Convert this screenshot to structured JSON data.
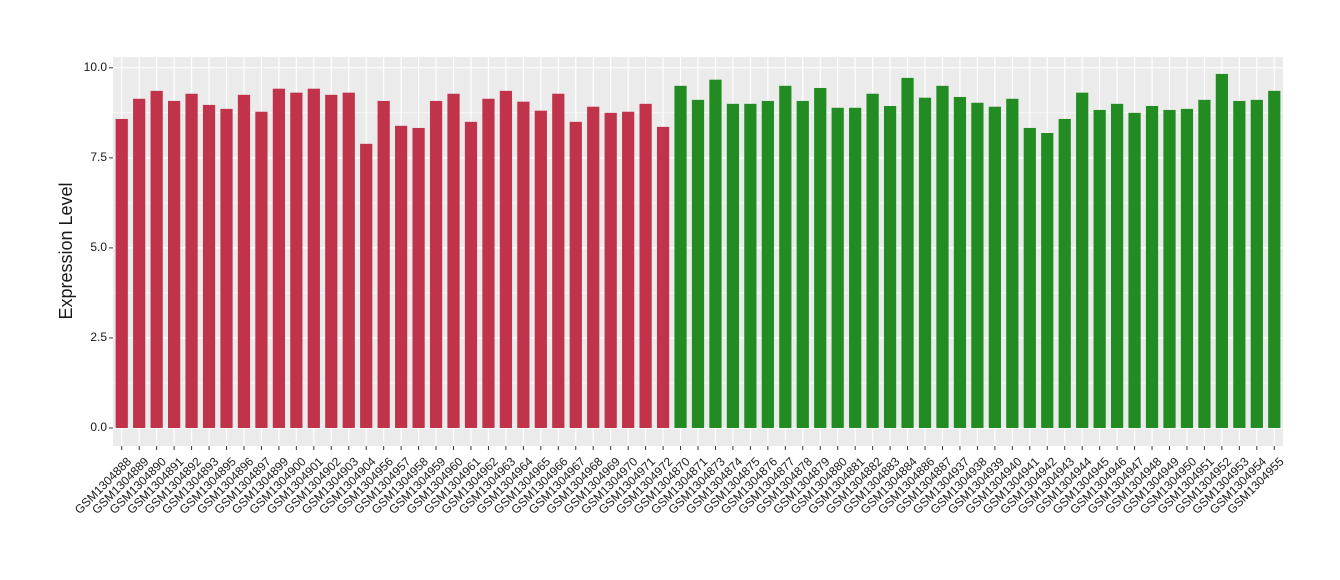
{
  "chart_data": {
    "type": "bar",
    "y_label": "Expression Level",
    "categories": [
      "GSM1304888",
      "GSM1304889",
      "GSM1304890",
      "GSM1304891",
      "GSM1304892",
      "GSM1304893",
      "GSM1304895",
      "GSM1304896",
      "GSM1304897",
      "GSM1304899",
      "GSM1304900",
      "GSM1304901",
      "GSM1304902",
      "GSM1304903",
      "GSM1304904",
      "GSM1304956",
      "GSM1304957",
      "GSM1304958",
      "GSM1304959",
      "GSM1304960",
      "GSM1304961",
      "GSM1304962",
      "GSM1304963",
      "GSM1304964",
      "GSM1304965",
      "GSM1304966",
      "GSM1304967",
      "GSM1304968",
      "GSM1304969",
      "GSM1304970",
      "GSM1304971",
      "GSM1304972",
      "GSM1304870",
      "GSM1304871",
      "GSM1304873",
      "GSM1304874",
      "GSM1304875",
      "GSM1304876",
      "GSM1304877",
      "GSM1304878",
      "GSM1304879",
      "GSM1304880",
      "GSM1304881",
      "GSM1304882",
      "GSM1304883",
      "GSM1304884",
      "GSM1304886",
      "GSM1304887",
      "GSM1304937",
      "GSM1304938",
      "GSM1304939",
      "GSM1304940",
      "GSM1304941",
      "GSM1304942",
      "GSM1304943",
      "GSM1304944",
      "GSM1304945",
      "GSM1304946",
      "GSM1304947",
      "GSM1304948",
      "GSM1304949",
      "GSM1304950",
      "GSM1304951",
      "GSM1304952",
      "GSM1304953",
      "GSM1304954",
      "GSM1304955"
    ],
    "series": [
      {
        "color": "#c0334a",
        "values": [
          8.58,
          9.14,
          9.36,
          9.08,
          9.28,
          8.97,
          8.86,
          9.25,
          8.78,
          9.42,
          9.31,
          9.42,
          9.25,
          9.31,
          7.89,
          9.08,
          8.39,
          8.33,
          9.08,
          9.28,
          8.5,
          9.14,
          9.36,
          9.06,
          8.81,
          9.28,
          8.5,
          8.92,
          8.75,
          8.78,
          9.0,
          8.36,
          null,
          null,
          null,
          null,
          null,
          null,
          null,
          null,
          null,
          null,
          null,
          null,
          null,
          null,
          null,
          null,
          null,
          null,
          null,
          null,
          null,
          null,
          null,
          null,
          null,
          null,
          null,
          null,
          null,
          null,
          null,
          null,
          null,
          null,
          null
        ]
      },
      {
        "color": "#228b22",
        "values": [
          null,
          null,
          null,
          null,
          null,
          null,
          null,
          null,
          null,
          null,
          null,
          null,
          null,
          null,
          null,
          null,
          null,
          null,
          null,
          null,
          null,
          null,
          null,
          null,
          null,
          null,
          null,
          null,
          null,
          null,
          null,
          null,
          9.5,
          9.11,
          9.67,
          9.0,
          9.0,
          9.08,
          9.5,
          9.08,
          9.44,
          8.89,
          8.89,
          9.28,
          8.94,
          9.72,
          9.17,
          9.5,
          9.19,
          9.03,
          8.92,
          9.14,
          8.33,
          8.19,
          8.58,
          9.31,
          8.83,
          9.0,
          8.75,
          8.94,
          8.83,
          8.86,
          9.11,
          9.83,
          9.08,
          9.11,
          9.36
        ]
      }
    ],
    "ylim": [
      -0.5,
      10.3
    ],
    "yticks": [
      {
        "value": 0,
        "label": "0.0"
      },
      {
        "value": 2.5,
        "label": "2.5"
      },
      {
        "value": 5,
        "label": "5.0"
      },
      {
        "value": 7.5,
        "label": "7.5"
      },
      {
        "value": 10,
        "label": "10.0"
      }
    ],
    "grid": true
  }
}
